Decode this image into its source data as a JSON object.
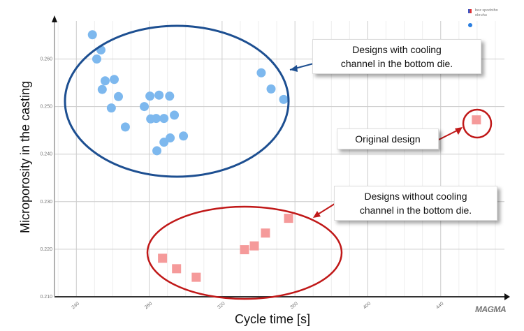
{
  "chart_data": {
    "type": "scatter",
    "title": "",
    "xlabel": "Cycle time [s]",
    "ylabel": "Microporosity in the casting",
    "xlim": [
      228,
      475
    ],
    "ylim": [
      0.21,
      0.268
    ],
    "xticks": [
      240,
      280,
      320,
      360,
      400,
      440
    ],
    "yticks": [
      "0.210",
      "0.220",
      "0.230",
      "0.240",
      "0.250",
      "0.260"
    ],
    "grid": true,
    "legend": {
      "placement": "top-right",
      "entries": [
        "bez spodniho okruhu",
        ""
      ]
    },
    "series": [
      {
        "name": "Designs with cooling channel in the bottom die",
        "marker": "circle",
        "color": "#7db8ee",
        "points": [
          [
            248.8,
            0.2651
          ],
          [
            253.5,
            0.2619
          ],
          [
            251.2,
            0.26
          ],
          [
            255.8,
            0.2554
          ],
          [
            260.8,
            0.2557
          ],
          [
            254.2,
            0.2536
          ],
          [
            263.1,
            0.2521
          ],
          [
            259.2,
            0.2497
          ],
          [
            266.9,
            0.2457
          ],
          [
            277.3,
            0.25
          ],
          [
            280.4,
            0.2522
          ],
          [
            285.4,
            0.2524
          ],
          [
            291.2,
            0.2522
          ],
          [
            280.8,
            0.2474
          ],
          [
            283.8,
            0.2475
          ],
          [
            288.1,
            0.2475
          ],
          [
            293.8,
            0.2482
          ],
          [
            298.8,
            0.2438
          ],
          [
            291.5,
            0.2434
          ],
          [
            288.1,
            0.2425
          ],
          [
            284.2,
            0.2407
          ],
          [
            341.5,
            0.2571
          ],
          [
            346.9,
            0.2537
          ],
          [
            353.8,
            0.2515
          ]
        ]
      },
      {
        "name": "Designs without cooling channel in the bottom die",
        "marker": "square",
        "color": "#f59a9a",
        "points": [
          [
            287.3,
            0.2181
          ],
          [
            295.0,
            0.2159
          ],
          [
            305.8,
            0.2141
          ],
          [
            332.3,
            0.2199
          ],
          [
            337.7,
            0.2207
          ],
          [
            343.8,
            0.2234
          ],
          [
            356.5,
            0.2265
          ]
        ]
      },
      {
        "name": "Original design",
        "marker": "square",
        "color": "#f59a9a",
        "points": [
          [
            459.6,
            0.2472
          ]
        ]
      }
    ],
    "annotations": [
      "Designs with cooling channel in the bottom die.",
      "Original design",
      "Designs without cooling channel in the bottom die."
    ]
  },
  "callouts": {
    "with_line1": "Designs with cooling",
    "with_line2": "channel in the bottom die.",
    "original": "Original design",
    "without_line1": "Designs without cooling",
    "without_line2": "channel in the bottom die."
  },
  "legend": {
    "label_line1": "bez spodniho",
    "label_line2": "okruhu"
  },
  "logo": "MAGMA",
  "colors": {
    "blue_ellipse": "#1d4f91",
    "red_ellipse": "#c01818"
  }
}
